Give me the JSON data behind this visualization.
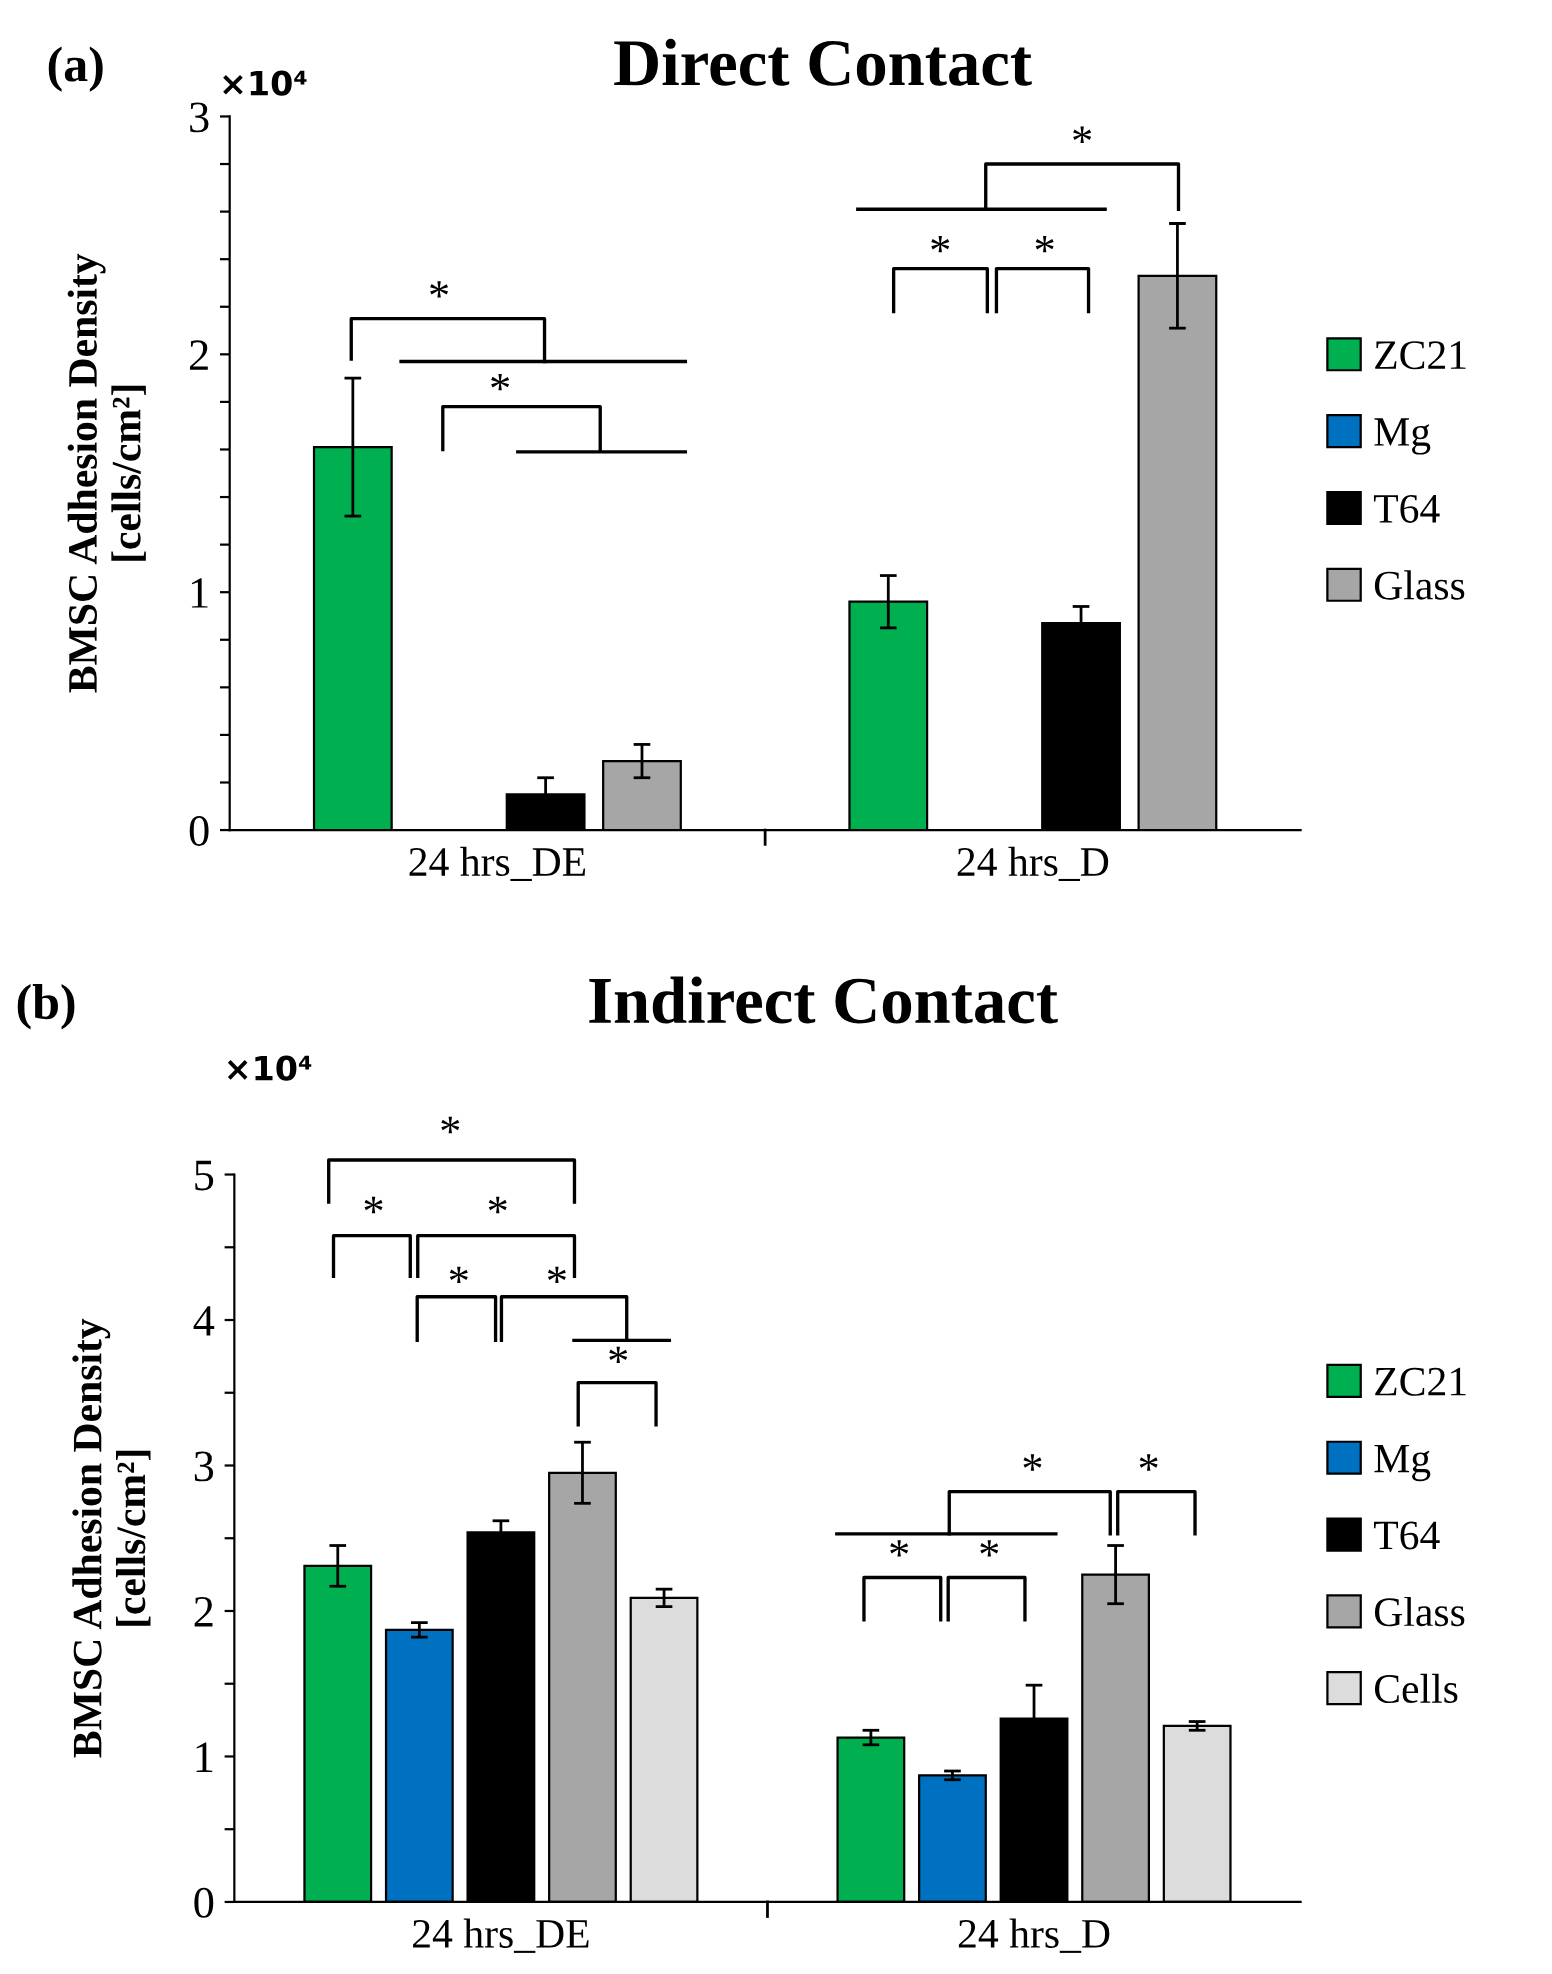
{
  "chart_data": [
    {
      "type": "bar",
      "title": "Direct Contact",
      "ylabel": "BMSC Adhesion Density\n[cells/cm²]",
      "annotations": [
        "(a)",
        "×10⁴",
        "*",
        "*",
        "*",
        "*",
        "*"
      ],
      "categories": [
        "24 hrs_DE",
        "24 hrs_D"
      ],
      "series": [
        {
          "name": "ZC21",
          "color": "#00b050",
          "values": [
            1.61,
            0.96
          ],
          "errors": [
            0.29,
            0.11
          ]
        },
        {
          "name": "Mg",
          "color": "#0070c0",
          "values": [
            null,
            null
          ],
          "errors": [
            null,
            null
          ]
        },
        {
          "name": "T64",
          "color": "#000000",
          "values": [
            0.15,
            0.87
          ],
          "errors": [
            0.07,
            0.07
          ]
        },
        {
          "name": "Glass",
          "color": "#a6a6a6",
          "values": [
            0.29,
            2.33
          ],
          "errors": [
            0.07,
            0.22
          ]
        }
      ],
      "ylim": [
        0,
        3
      ],
      "yticks": [
        0,
        {
          "value": 0.2,
          "label": null
        },
        {
          "value": 0.4,
          "label": null
        },
        {
          "value": 0.6,
          "label": null
        },
        {
          "value": 0.8,
          "label": null
        },
        1,
        {
          "value": 1.2,
          "label": null
        },
        {
          "value": 1.4,
          "label": null
        },
        {
          "value": 1.6,
          "label": null
        },
        {
          "value": 1.8,
          "label": null
        },
        2,
        {
          "value": 2.2,
          "label": null
        },
        {
          "value": 2.4,
          "label": null
        },
        {
          "value": 2.6,
          "label": null
        },
        {
          "value": 2.8,
          "label": null
        },
        3
      ],
      "legend": "right",
      "grid": false
    },
    {
      "type": "bar",
      "title": "Indirect Contact",
      "ylabel": "BMSC Adhesion Density\n[cells/cm²]",
      "annotations": [
        "(b)",
        "×10⁴",
        "*",
        "*",
        "*",
        "*",
        "*",
        "*",
        "*",
        "*",
        "*",
        "*"
      ],
      "categories": [
        "24 hrs_DE",
        "24 hrs_D"
      ],
      "series": [
        {
          "name": "ZC21",
          "color": "#00b050",
          "values": [
            2.31,
            1.13
          ],
          "errors": [
            0.14,
            0.05
          ]
        },
        {
          "name": "Mg",
          "color": "#0070c0",
          "values": [
            1.87,
            0.87
          ],
          "errors": [
            0.05,
            0.03
          ]
        },
        {
          "name": "T64",
          "color": "#000000",
          "values": [
            2.54,
            1.26
          ],
          "errors": [
            0.08,
            0.23
          ]
        },
        {
          "name": "Glass",
          "color": "#a6a6a6",
          "values": [
            2.95,
            2.25
          ],
          "errors": [
            0.21,
            0.2
          ]
        },
        {
          "name": "Cells",
          "color": "#dcdcdc",
          "values": [
            2.09,
            1.21
          ],
          "errors": [
            0.06,
            0.03
          ]
        }
      ],
      "ylim": [
        0,
        5
      ],
      "yticks": [
        0,
        {
          "value": 0.5,
          "label": null
        },
        1,
        {
          "value": 1.5,
          "label": null
        },
        2,
        {
          "value": 2.5,
          "label": null
        },
        3,
        {
          "value": 3.5,
          "label": null
        },
        4,
        {
          "value": 4.5,
          "label": null
        },
        5
      ],
      "legend": "right",
      "grid": false
    }
  ]
}
